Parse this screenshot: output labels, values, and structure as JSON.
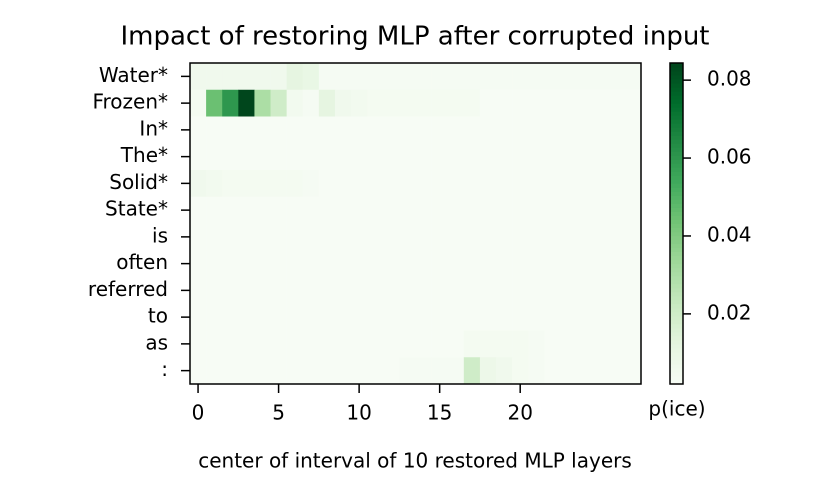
{
  "chart_data": {
    "type": "heatmap",
    "title": "Impact of restoring MLP after corrupted input",
    "xlabel": "center of interval of 10 restored MLP layers",
    "colorbar_label": "p(ice)",
    "categories": [
      "Water*",
      "Frozen*",
      "In*",
      "The*",
      "Solid*",
      "State*",
      "is",
      "often",
      "referred",
      "to",
      "as",
      ":"
    ],
    "x": [
      0,
      1,
      2,
      3,
      4,
      5,
      6,
      7,
      8,
      9,
      10,
      11,
      12,
      13,
      14,
      15,
      16,
      17,
      18,
      19,
      20,
      21,
      22,
      23,
      24,
      25,
      26,
      27
    ],
    "xlim": [
      -0.5,
      27.5
    ],
    "xticks": [
      0,
      5,
      10,
      15,
      20
    ],
    "clim": [
      0.002,
      0.0844
    ],
    "cticks": [
      0.02,
      0.04,
      0.06,
      0.08
    ],
    "colormap": [
      "#f7fcf5",
      "#e5f5e0",
      "#c7e9c0",
      "#a1d99b",
      "#74c476",
      "#41ab5d",
      "#238b45",
      "#006d2c",
      "#00441b"
    ],
    "values": [
      [
        0.006,
        0.006,
        0.006,
        0.006,
        0.006,
        0.006,
        0.012,
        0.01,
        0.003,
        0.003,
        0.003,
        0.003,
        0.003,
        0.003,
        0.003,
        0.003,
        0.003,
        0.003,
        0.003,
        0.003,
        0.003,
        0.003,
        0.003,
        0.003,
        0.003,
        0.003,
        0.003,
        0.003
      ],
      [
        0.004,
        0.045,
        0.06,
        0.084,
        0.03,
        0.02,
        0.005,
        0.003,
        0.012,
        0.006,
        0.005,
        0.004,
        0.004,
        0.004,
        0.004,
        0.004,
        0.004,
        0.004,
        0.002,
        0.002,
        0.002,
        0.002,
        0.002,
        0.002,
        0.002,
        0.002,
        0.002,
        0.002
      ],
      [
        0.002,
        0.002,
        0.002,
        0.002,
        0.002,
        0.002,
        0.002,
        0.002,
        0.002,
        0.002,
        0.002,
        0.002,
        0.002,
        0.002,
        0.002,
        0.002,
        0.002,
        0.002,
        0.002,
        0.002,
        0.002,
        0.002,
        0.002,
        0.002,
        0.002,
        0.002,
        0.002,
        0.002
      ],
      [
        0.002,
        0.002,
        0.002,
        0.002,
        0.002,
        0.002,
        0.002,
        0.002,
        0.002,
        0.002,
        0.002,
        0.002,
        0.002,
        0.002,
        0.002,
        0.002,
        0.002,
        0.002,
        0.002,
        0.002,
        0.002,
        0.002,
        0.002,
        0.002,
        0.002,
        0.002,
        0.002,
        0.002
      ],
      [
        0.006,
        0.005,
        0.004,
        0.004,
        0.004,
        0.004,
        0.004,
        0.003,
        0.002,
        0.002,
        0.002,
        0.002,
        0.002,
        0.002,
        0.002,
        0.002,
        0.002,
        0.002,
        0.002,
        0.002,
        0.002,
        0.002,
        0.002,
        0.002,
        0.002,
        0.002,
        0.002,
        0.002
      ],
      [
        0.002,
        0.002,
        0.002,
        0.002,
        0.002,
        0.002,
        0.002,
        0.002,
        0.002,
        0.002,
        0.002,
        0.002,
        0.002,
        0.002,
        0.002,
        0.002,
        0.002,
        0.002,
        0.002,
        0.002,
        0.002,
        0.002,
        0.002,
        0.002,
        0.002,
        0.002,
        0.002,
        0.002
      ],
      [
        0.002,
        0.002,
        0.002,
        0.002,
        0.002,
        0.002,
        0.002,
        0.002,
        0.002,
        0.002,
        0.002,
        0.002,
        0.002,
        0.002,
        0.002,
        0.002,
        0.002,
        0.002,
        0.002,
        0.002,
        0.002,
        0.002,
        0.002,
        0.002,
        0.002,
        0.002,
        0.002,
        0.002
      ],
      [
        0.002,
        0.002,
        0.002,
        0.002,
        0.002,
        0.002,
        0.002,
        0.002,
        0.002,
        0.002,
        0.002,
        0.002,
        0.002,
        0.002,
        0.002,
        0.002,
        0.002,
        0.002,
        0.002,
        0.002,
        0.002,
        0.002,
        0.002,
        0.002,
        0.002,
        0.002,
        0.002,
        0.002
      ],
      [
        0.002,
        0.002,
        0.002,
        0.002,
        0.002,
        0.002,
        0.002,
        0.002,
        0.002,
        0.002,
        0.002,
        0.002,
        0.002,
        0.002,
        0.002,
        0.002,
        0.002,
        0.002,
        0.002,
        0.002,
        0.002,
        0.002,
        0.002,
        0.002,
        0.002,
        0.002,
        0.002,
        0.002
      ],
      [
        0.002,
        0.002,
        0.002,
        0.002,
        0.002,
        0.002,
        0.002,
        0.002,
        0.002,
        0.002,
        0.002,
        0.002,
        0.002,
        0.002,
        0.002,
        0.002,
        0.002,
        0.002,
        0.002,
        0.002,
        0.002,
        0.002,
        0.002,
        0.002,
        0.002,
        0.002,
        0.002,
        0.002
      ],
      [
        0.002,
        0.002,
        0.002,
        0.002,
        0.002,
        0.002,
        0.002,
        0.002,
        0.002,
        0.002,
        0.002,
        0.002,
        0.002,
        0.002,
        0.002,
        0.002,
        0.002,
        0.004,
        0.004,
        0.004,
        0.004,
        0.003,
        0.002,
        0.002,
        0.002,
        0.002,
        0.002,
        0.002
      ],
      [
        0.002,
        0.002,
        0.002,
        0.002,
        0.002,
        0.002,
        0.002,
        0.002,
        0.002,
        0.002,
        0.002,
        0.002,
        0.002,
        0.003,
        0.003,
        0.003,
        0.003,
        0.02,
        0.008,
        0.006,
        0.004,
        0.003,
        0.002,
        0.002,
        0.002,
        0.002,
        0.002,
        0.002
      ]
    ]
  }
}
